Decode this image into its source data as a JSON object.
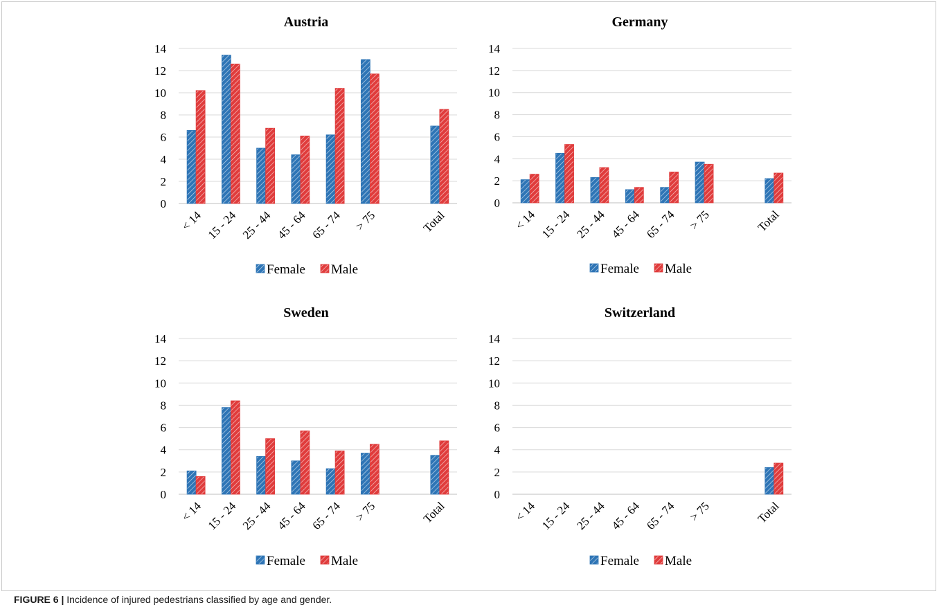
{
  "caption": {
    "label": "FIGURE 6 |",
    "text": "Incidence of injured pedestrians classified by age and gender."
  },
  "colors": {
    "female": "#2e75b6",
    "male": "#e03c3c",
    "grid": "#d9d9d9",
    "axis": "#bfbfbf"
  },
  "legend": [
    "Female",
    "Male"
  ],
  "chart_data": [
    {
      "type": "bar",
      "title": "Austria",
      "categories": [
        "< 14",
        "15 - 24",
        "25 - 44",
        "45 - 64",
        "65 - 74",
        "> 75",
        "",
        "Total"
      ],
      "series": [
        {
          "name": "Female",
          "values": [
            6.6,
            13.4,
            5.0,
            4.4,
            6.2,
            13.0,
            null,
            7.0
          ]
        },
        {
          "name": "Male",
          "values": [
            10.2,
            12.6,
            6.8,
            6.1,
            10.4,
            11.7,
            null,
            8.5
          ]
        }
      ],
      "yticks": [
        0,
        2,
        4,
        6,
        8,
        10,
        12,
        14
      ],
      "ylim": [
        0,
        14
      ],
      "grid": true,
      "legend_position": "bottom"
    },
    {
      "type": "bar",
      "title": "Germany",
      "categories": [
        "< 14",
        "15 - 24",
        "25 - 44",
        "45 - 64",
        "65 - 74",
        "> 75",
        "",
        "Total"
      ],
      "series": [
        {
          "name": "Female",
          "values": [
            2.1,
            4.5,
            2.3,
            1.2,
            1.4,
            3.7,
            null,
            2.2
          ]
        },
        {
          "name": "Male",
          "values": [
            2.6,
            5.3,
            3.2,
            1.4,
            2.8,
            3.5,
            null,
            2.7
          ]
        }
      ],
      "yticks": [
        0,
        2,
        4,
        6,
        8,
        10,
        12,
        14
      ],
      "ylim": [
        0,
        14
      ],
      "grid": true,
      "legend_position": "bottom"
    },
    {
      "type": "bar",
      "title": "Sweden",
      "categories": [
        "< 14",
        "15 - 24",
        "25 - 44",
        "45 - 64",
        "65 - 74",
        "> 75",
        "",
        "Total"
      ],
      "series": [
        {
          "name": "Female",
          "values": [
            2.1,
            7.8,
            3.4,
            3.0,
            2.3,
            3.7,
            null,
            3.5
          ]
        },
        {
          "name": "Male",
          "values": [
            1.6,
            8.4,
            5.0,
            5.7,
            3.9,
            4.5,
            null,
            4.8
          ]
        }
      ],
      "yticks": [
        0,
        2,
        4,
        6,
        8,
        10,
        12,
        14
      ],
      "ylim": [
        0,
        14
      ],
      "grid": true,
      "legend_position": "bottom"
    },
    {
      "type": "bar",
      "title": "Switzerland",
      "categories": [
        "< 14",
        "15 - 24",
        "25 - 44",
        "45 - 64",
        "65 - 74",
        "> 75",
        "",
        "Total"
      ],
      "series": [
        {
          "name": "Female",
          "values": [
            null,
            null,
            null,
            null,
            null,
            null,
            null,
            2.4
          ]
        },
        {
          "name": "Male",
          "values": [
            null,
            null,
            null,
            null,
            null,
            null,
            null,
            2.8
          ]
        }
      ],
      "yticks": [
        0,
        2,
        4,
        6,
        8,
        10,
        12,
        14
      ],
      "ylim": [
        0,
        14
      ],
      "grid": true,
      "legend_position": "bottom"
    }
  ]
}
